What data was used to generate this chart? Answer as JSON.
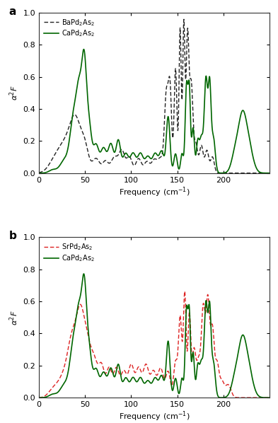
{
  "title_a": "a",
  "title_b": "b",
  "xlabel": "Frequency (cm$^{-1}$)",
  "ylabel": "$\\alpha^2F$",
  "xlim": [
    0,
    250
  ],
  "ylim": [
    0,
    1.0
  ],
  "yticks": [
    0,
    0.2,
    0.4,
    0.6,
    0.8,
    1.0
  ],
  "xticks": [
    0,
    50,
    100,
    150,
    200
  ],
  "xtick_labels": [
    "0",
    "50",
    "100",
    "150",
    "200"
  ],
  "legend_a": [
    "BaPd$_2$As$_2$",
    "CaPd$_2$As$_2$"
  ],
  "legend_b": [
    "SrPd$_2$As$_2$",
    "CaPd$_2$As$_2$"
  ],
  "color_ba": "#222222",
  "color_sr": "#dd2222",
  "color_ca": "#006600",
  "lw_dashed": 1.0,
  "lw_solid": 1.2,
  "background_color": "#ffffff"
}
